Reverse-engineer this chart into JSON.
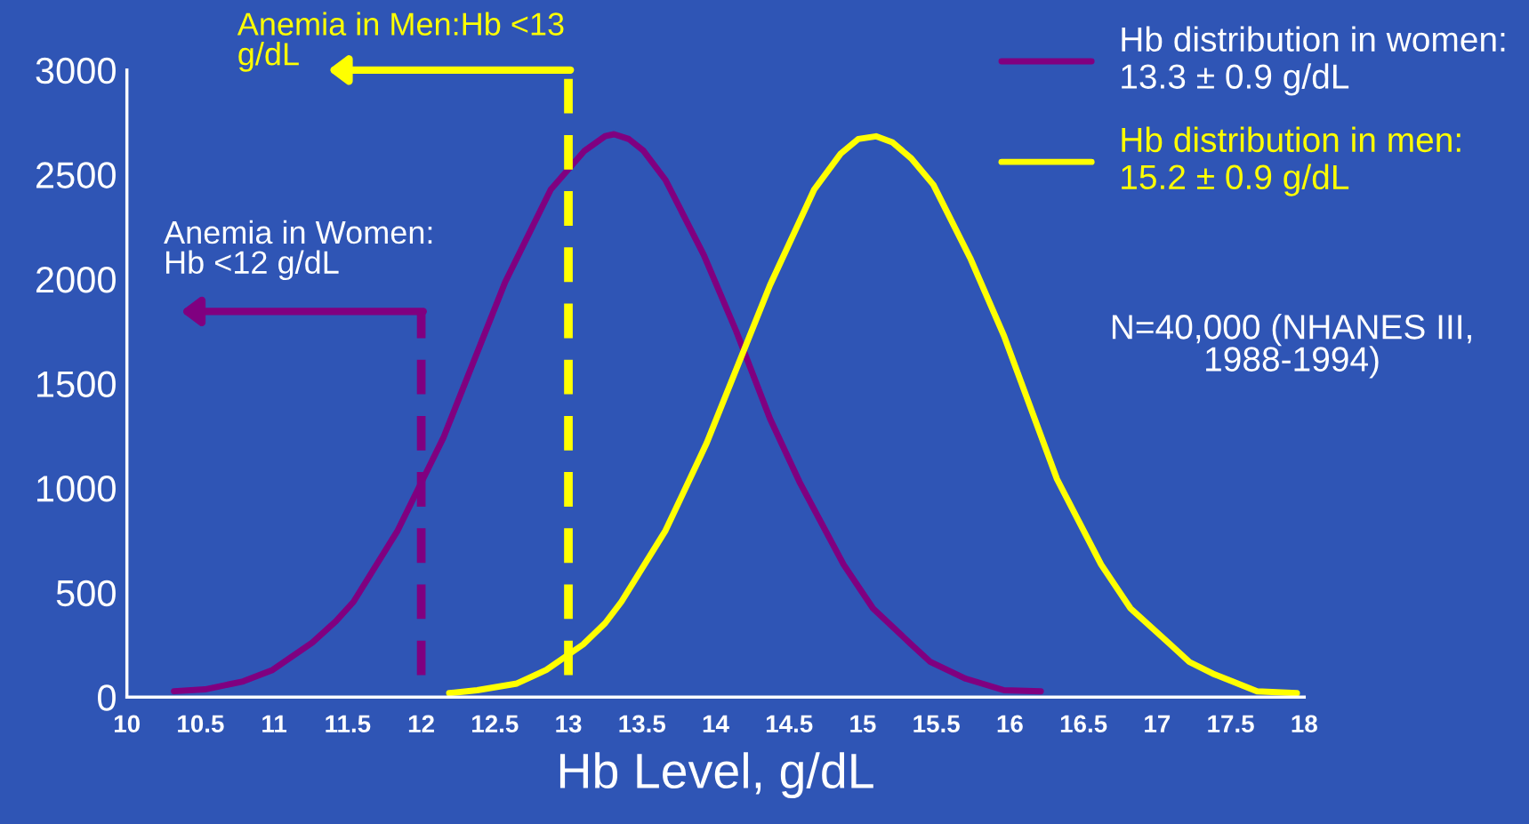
{
  "chart_data": {
    "type": "line",
    "xlabel": "Hb Level, g/dL",
    "series": [
      {
        "name": "Hb distribution in women:\n13.3 ± 0.9 g/dL",
        "color": "#800080",
        "x": [
          10.32,
          10.53,
          10.79,
          10.99,
          11.26,
          11.42,
          11.54,
          11.84,
          12.15,
          12.57,
          12.88,
          13.11,
          13.25,
          13.31,
          13.41,
          13.51,
          13.66,
          13.92,
          14.14,
          14.37,
          14.57,
          14.87,
          15.07,
          15.33,
          15.46,
          15.7,
          15.96,
          16.21
        ],
        "values": [
          28,
          37,
          75,
          130,
          261,
          363,
          456,
          797,
          1240,
          1985,
          2428,
          2614,
          2684,
          2693,
          2670,
          2614,
          2474,
          2115,
          1751,
          1332,
          1030,
          634,
          424,
          252,
          168,
          88,
          33,
          28
        ]
      },
      {
        "name": "Hb distribution in men:\n15.2 ± 0.9 g/dL",
        "color": "#ffff00",
        "x": [
          12.19,
          12.38,
          12.65,
          12.85,
          13.1,
          13.25,
          13.36,
          13.66,
          13.94,
          14.37,
          14.67,
          14.85,
          14.97,
          15.09,
          15.2,
          15.33,
          15.48,
          15.73,
          15.96,
          16.32,
          16.62,
          16.82,
          17.09,
          17.22,
          17.38,
          17.68,
          17.95
        ],
        "values": [
          19,
          33,
          65,
          130,
          252,
          354,
          456,
          797,
          1216,
          1971,
          2428,
          2600,
          2670,
          2683,
          2655,
          2577,
          2451,
          2101,
          1728,
          1043,
          634,
          424,
          252,
          168,
          112,
          28,
          19
        ]
      }
    ],
    "ref_lines": [
      {
        "axis": "x",
        "value": 12,
        "label": "Anemia in Women:\nHb <12 g/dL",
        "color": "#800080",
        "line_style": "dashed"
      },
      {
        "axis": "x",
        "value": 13,
        "label": "Anemia in Men:Hb <13\ng/dL",
        "color": "#ffff00",
        "line_style": "dashed"
      }
    ],
    "annotations": [
      "N=40,000 (NHANES III,\n1988-1994)"
    ],
    "xlim": [
      10,
      18
    ],
    "xticks": [
      10,
      10.5,
      11,
      11.5,
      12,
      12.5,
      13,
      13.5,
      14,
      14.5,
      15,
      15.5,
      16,
      16.5,
      17,
      17.5,
      18
    ],
    "ylim": [
      0,
      3000
    ],
    "yticks": [
      0,
      500,
      1000,
      1500,
      2000,
      2500,
      3000
    ],
    "grid": false,
    "legend": "top right",
    "marker": "none",
    "line_style": "solid"
  }
}
